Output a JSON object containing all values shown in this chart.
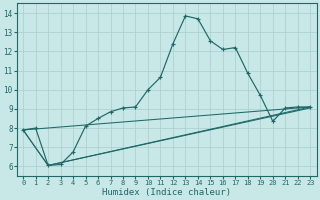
{
  "xlabel": "Humidex (Indice chaleur)",
  "bg_color": "#c8e8e8",
  "grid_color": "#a8cece",
  "line_color": "#1e6868",
  "xlim": [
    -0.5,
    23.5
  ],
  "ylim": [
    5.5,
    14.5
  ],
  "xticks": [
    0,
    1,
    2,
    3,
    4,
    5,
    6,
    7,
    8,
    9,
    10,
    11,
    12,
    13,
    14,
    15,
    16,
    17,
    18,
    19,
    20,
    21,
    22,
    23
  ],
  "yticks": [
    6,
    7,
    8,
    9,
    10,
    11,
    12,
    13,
    14
  ],
  "main_x": [
    0,
    1,
    2,
    3,
    4,
    5,
    6,
    7,
    8,
    9,
    10,
    11,
    12,
    13,
    14,
    15,
    16,
    17,
    18,
    19,
    20,
    21,
    22,
    23
  ],
  "main_y": [
    7.9,
    8.0,
    6.05,
    6.1,
    6.75,
    8.1,
    8.5,
    8.85,
    9.05,
    9.1,
    10.0,
    10.65,
    12.4,
    13.85,
    13.7,
    12.55,
    12.1,
    12.2,
    10.85,
    9.7,
    8.35,
    9.05,
    9.1,
    9.1
  ],
  "straight_lines": [
    {
      "x": [
        0,
        23
      ],
      "y": [
        7.9,
        9.1
      ]
    },
    {
      "x": [
        0,
        2,
        23
      ],
      "y": [
        7.9,
        6.05,
        9.1
      ]
    },
    {
      "x": [
        0,
        2,
        23
      ],
      "y": [
        7.9,
        6.05,
        9.05
      ]
    }
  ]
}
